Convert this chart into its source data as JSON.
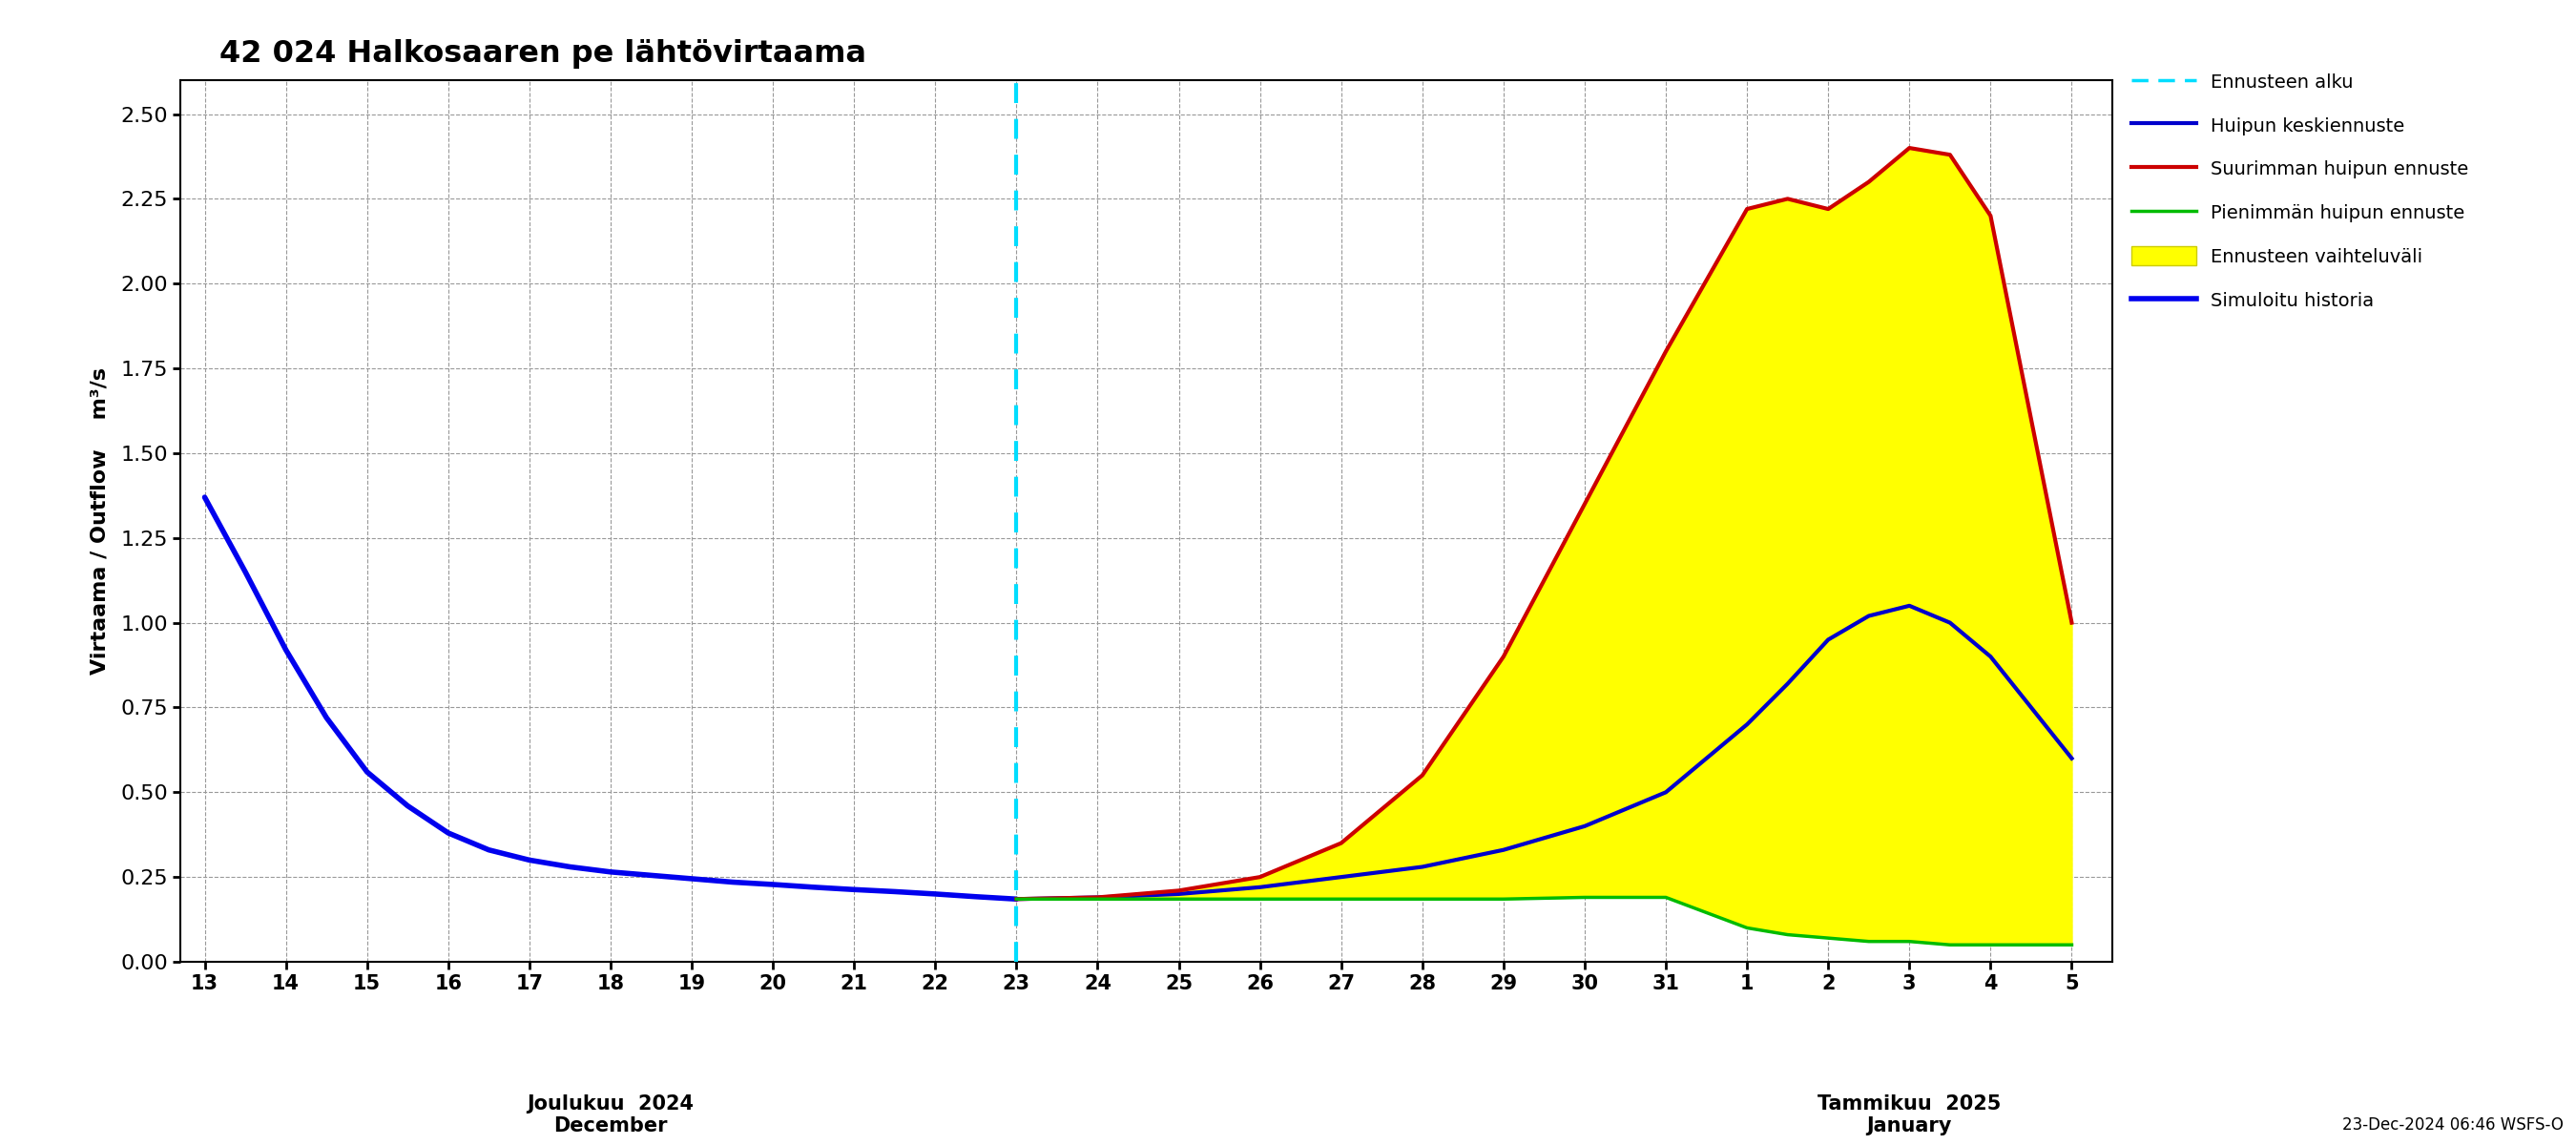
{
  "title": "42 024 Halkosaaren pe lähtövirtaama",
  "ylabel": "Virtaama / Outflow    m³/s",
  "ylim": [
    0.0,
    2.6
  ],
  "yticks": [
    0.0,
    0.25,
    0.5,
    0.75,
    1.0,
    1.25,
    1.5,
    1.75,
    2.0,
    2.25,
    2.5
  ],
  "bg_color": "#ffffff",
  "grid_color": "#999999",
  "history_x": [
    0,
    0.5,
    1,
    1.5,
    2,
    2.5,
    3,
    3.5,
    4,
    4.5,
    5,
    5.5,
    6,
    6.5,
    7,
    7.5,
    8,
    8.5,
    9,
    9.5,
    10
  ],
  "history_y": [
    1.37,
    1.15,
    0.92,
    0.72,
    0.56,
    0.46,
    0.38,
    0.33,
    0.3,
    0.28,
    0.265,
    0.255,
    0.245,
    0.235,
    0.228,
    0.22,
    0.213,
    0.207,
    0.2,
    0.192,
    0.185
  ],
  "vline_x": 10,
  "forecast_x": [
    10,
    11,
    12,
    13,
    14,
    15,
    16,
    17,
    18,
    19,
    19.5,
    20,
    20.5,
    21,
    21.5,
    22,
    22.5,
    23
  ],
  "mean_y": [
    0.185,
    0.19,
    0.2,
    0.22,
    0.25,
    0.28,
    0.33,
    0.4,
    0.5,
    0.7,
    0.82,
    0.95,
    1.02,
    1.05,
    1.0,
    0.9,
    0.75,
    0.6
  ],
  "max_y": [
    0.185,
    0.19,
    0.21,
    0.25,
    0.35,
    0.55,
    0.9,
    1.35,
    1.8,
    2.22,
    2.25,
    2.22,
    2.3,
    2.4,
    2.38,
    2.2,
    1.6,
    1.0
  ],
  "min_y": [
    0.185,
    0.185,
    0.185,
    0.185,
    0.185,
    0.185,
    0.185,
    0.19,
    0.19,
    0.1,
    0.08,
    0.07,
    0.06,
    0.06,
    0.05,
    0.05,
    0.05,
    0.05
  ],
  "history_color": "#0000ee",
  "mean_color": "#0000cc",
  "max_color": "#cc0000",
  "min_color": "#00bb00",
  "fill_color": "#ffff00",
  "vline_color": "#00ddff",
  "history_lw": 4.0,
  "mean_lw": 3.0,
  "max_lw": 3.0,
  "min_lw": 2.5,
  "footnote": "23-Dec-2024 06:46 WSFS-O",
  "xlabel_dec_x": 5,
  "xlabel_jan_x": 21,
  "xlabel_dec": "Joulukuu  2024\nDecember",
  "xlabel_jan": "Tammikuu  2025\nJanuary"
}
